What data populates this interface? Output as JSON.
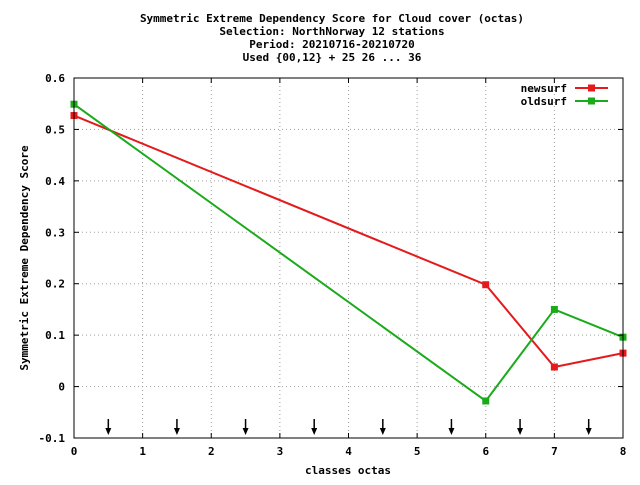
{
  "chart_data": {
    "type": "line",
    "title_lines": [
      "Symmetric Extreme Dependency Score  for Cloud cover (octas)",
      "Selection: NorthNorway     12 stations",
      "Period: 20210716-20210720",
      "Used {00,12} + 25 26 ... 36"
    ],
    "xlabel": "classes octas",
    "ylabel": "Symmetric Extreme Dependency Score",
    "xlim": [
      0,
      8
    ],
    "ylim": [
      -0.1,
      0.6
    ],
    "xticks": [
      0,
      1,
      2,
      3,
      4,
      5,
      6,
      7,
      8
    ],
    "xtick_labels": [
      "0",
      "1",
      "2",
      "3",
      "4",
      "5",
      "6",
      "7",
      "8"
    ],
    "yticks": [
      -0.1,
      0,
      0.1,
      0.2,
      0.3,
      0.4,
      0.5,
      0.6
    ],
    "ytick_labels": [
      "-0.1",
      "0",
      "0.1",
      "0.2",
      "0.3",
      "0.4",
      "0.5",
      "0.6"
    ],
    "grid": true,
    "legend_position": "top-right",
    "series": [
      {
        "name": "newsurf",
        "color": "#e41a1c",
        "x": [
          0,
          6,
          7,
          8
        ],
        "y": [
          0.527,
          0.198,
          0.038,
          0.065
        ]
      },
      {
        "name": "oldsurf",
        "color": "#1aaa1a",
        "x": [
          0,
          6,
          7,
          8
        ],
        "y": [
          0.549,
          -0.028,
          0.15,
          0.096
        ]
      }
    ],
    "arrow_markers_x": [
      0.5,
      1.5,
      2.5,
      3.5,
      4.5,
      5.5,
      6.5,
      7.5
    ]
  }
}
